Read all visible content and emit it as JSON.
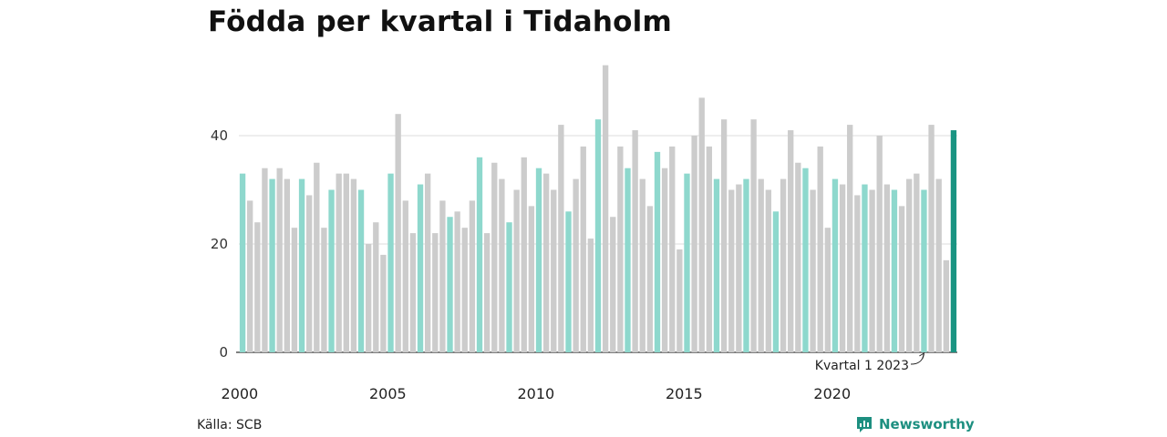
{
  "title": "Födda per kvartal i Tidaholm",
  "source": "Källa: SCB",
  "brand": {
    "name": "Newsworthy",
    "icon": "newsworthy-logo-icon"
  },
  "colors": {
    "q1": "#8ed8cd",
    "other": "#cccccc",
    "latest": "#1a9482",
    "grid": "#dddddd",
    "axis": "#333333"
  },
  "chart_data": {
    "type": "bar",
    "title": "Födda per kvartal i Tidaholm",
    "xlabel": "",
    "ylabel": "",
    "ylim": [
      0,
      55
    ],
    "yticks": [
      0,
      20,
      40
    ],
    "grid": true,
    "start_year": 2000,
    "x_tick_labels": [
      "2000",
      "2005",
      "2010",
      "2015",
      "2020"
    ],
    "annotation": {
      "text": "Kvartal 1 2023",
      "points_to": "2023 Q1"
    },
    "values": [
      33,
      28,
      24,
      34,
      32,
      34,
      32,
      23,
      32,
      29,
      35,
      23,
      30,
      33,
      33,
      32,
      30,
      20,
      24,
      18,
      33,
      44,
      28,
      22,
      31,
      33,
      22,
      28,
      25,
      26,
      23,
      28,
      36,
      22,
      35,
      32,
      24,
      30,
      36,
      27,
      34,
      33,
      30,
      42,
      26,
      32,
      38,
      21,
      43,
      53,
      25,
      38,
      34,
      41,
      32,
      27,
      37,
      34,
      38,
      19,
      33,
      40,
      47,
      38,
      32,
      43,
      30,
      31,
      32,
      43,
      32,
      30,
      26,
      32,
      41,
      35,
      34,
      30,
      38,
      23,
      32,
      31,
      42,
      29,
      31,
      30,
      40,
      31,
      30,
      27,
      32,
      33,
      30,
      42,
      32,
      17,
      41
    ]
  }
}
